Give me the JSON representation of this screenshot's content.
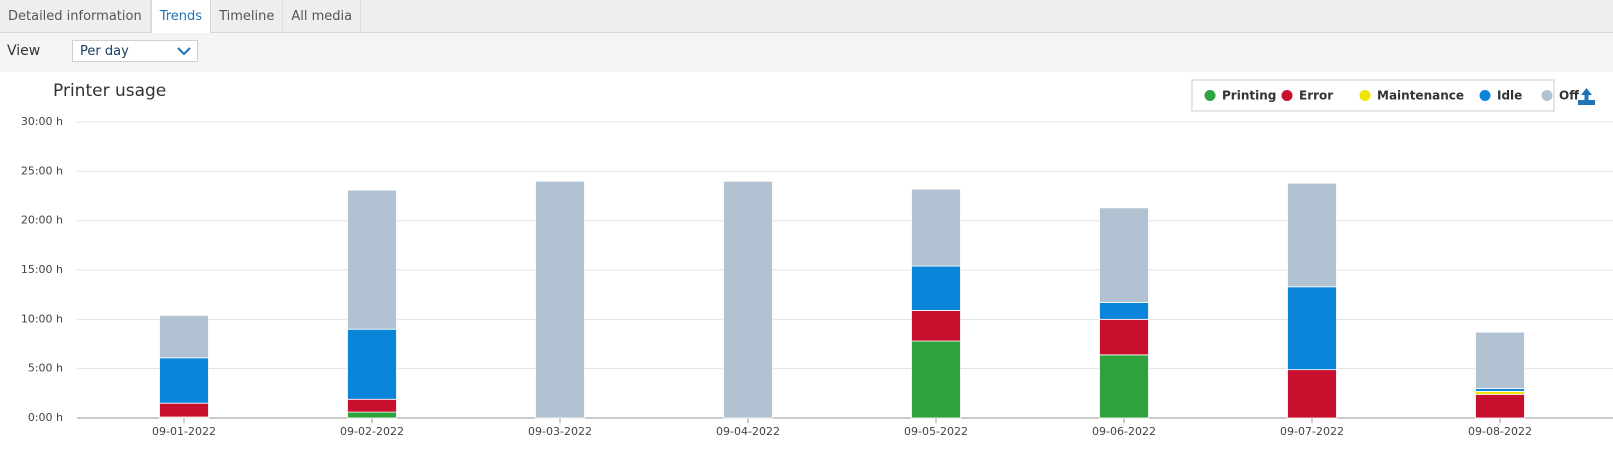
{
  "tabs": [
    "Detailed information",
    "Trends",
    "Timeline",
    "All media"
  ],
  "view": {
    "label": "View",
    "value": "Per day"
  },
  "chart_data": {
    "type": "stacked-bar",
    "title": "Printer usage",
    "categories": [
      "09-01-2022",
      "09-02-2022",
      "09-03-2022",
      "09-04-2022",
      "09-05-2022",
      "09-06-2022",
      "09-07-2022",
      "09-08-2022"
    ],
    "series": [
      {
        "name": "Printing",
        "color": "#2ea33d",
        "values": [
          0.1,
          0.6,
          0,
          0,
          7.8,
          6.4,
          0,
          0
        ]
      },
      {
        "name": "Error",
        "color": "#c8102e",
        "values": [
          1.4,
          1.3,
          0,
          0,
          3.1,
          3.6,
          4.9,
          2.4
        ]
      },
      {
        "name": "Maintenance",
        "color": "#f2e500",
        "values": [
          0,
          0,
          0,
          0,
          0,
          0,
          0,
          0.3
        ]
      },
      {
        "name": "Idle",
        "color": "#0a85d9",
        "values": [
          4.6,
          7.1,
          0,
          0,
          4.5,
          1.7,
          8.4,
          0.3
        ]
      },
      {
        "name": "Off",
        "color": "#b1c3d2",
        "values": [
          4.3,
          14.1,
          24,
          24,
          7.8,
          9.6,
          10.5,
          5.7
        ]
      }
    ],
    "ylim": [
      0,
      30
    ],
    "yticks": [
      {
        "value": 0,
        "label": "0:00 h"
      },
      {
        "value": 5,
        "label": "5:00 h"
      },
      {
        "value": 10,
        "label": "10:00 h"
      },
      {
        "value": 15,
        "label": "15:00 h"
      },
      {
        "value": 20,
        "label": "20:00 h"
      },
      {
        "value": 25,
        "label": "25:00 h"
      },
      {
        "value": 30,
        "label": "30:00 h"
      }
    ],
    "grid": true
  }
}
